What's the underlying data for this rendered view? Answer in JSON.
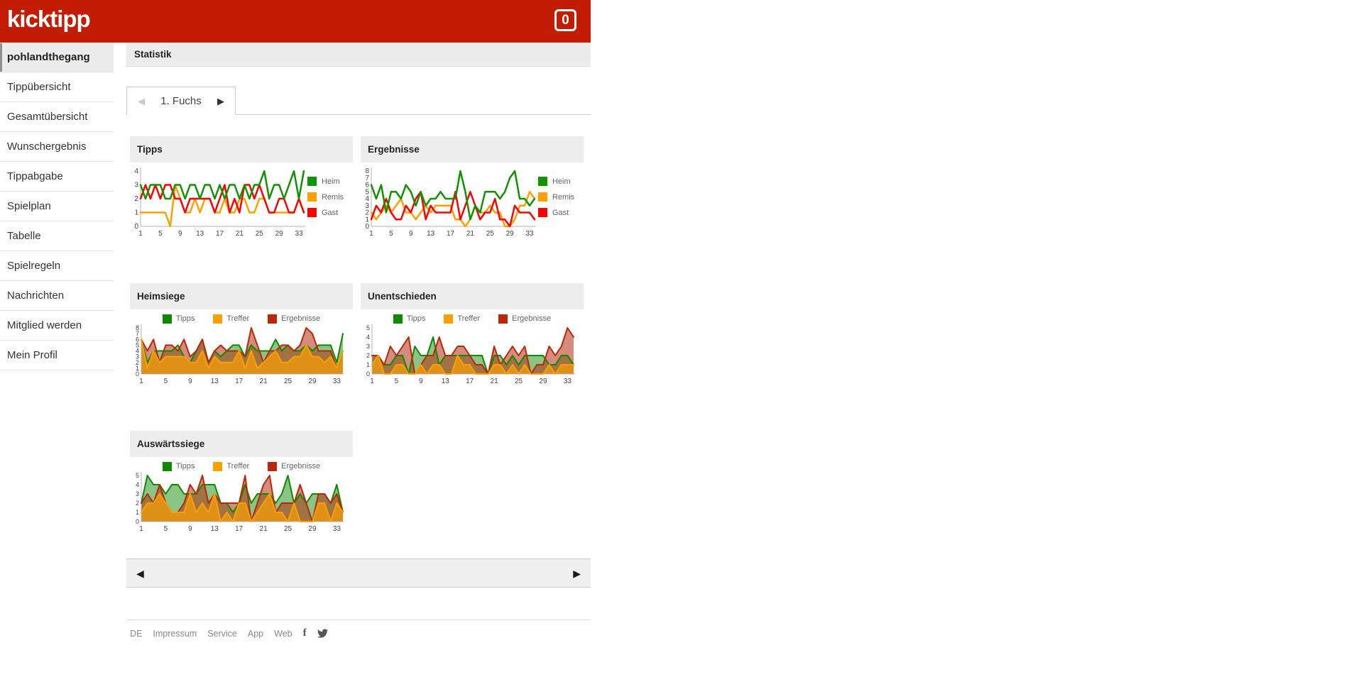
{
  "header": {
    "logo": "kicktipp",
    "badge_count": "0",
    "brand_color": "#c21d04"
  },
  "sidebar": {
    "items": [
      {
        "label": "pohlandthegang",
        "active": true
      },
      {
        "label": "Tippübersicht",
        "active": false
      },
      {
        "label": "Gesamtübersicht",
        "active": false
      },
      {
        "label": "Wunschergebnis",
        "active": false
      },
      {
        "label": "Tippabgabe",
        "active": false
      },
      {
        "label": "Spielplan",
        "active": false
      },
      {
        "label": "Tabelle",
        "active": false
      },
      {
        "label": "Spielregeln",
        "active": false
      },
      {
        "label": "Nachrichten",
        "active": false
      },
      {
        "label": "Mitglied werden",
        "active": false
      },
      {
        "label": "Mein Profil",
        "active": false
      }
    ]
  },
  "statistik_bar": {
    "title": "Statistik"
  },
  "pager_tab": {
    "label": "1. Fuchs",
    "prev_icon": "left-triangle",
    "next_icon": "right-triangle",
    "prev_enabled": false,
    "next_enabled": true
  },
  "bottom_pager": {
    "prev_icon": "left-triangle",
    "next_icon": "right-triangle"
  },
  "footer": {
    "links": [
      "DE",
      "Impressum",
      "Service",
      "App",
      "Web"
    ],
    "social": [
      "facebook",
      "twitter"
    ]
  },
  "chart_data": [
    {
      "type": "line",
      "title": "Tipps",
      "legend_position": "right",
      "x_start": 1,
      "x_end": 34,
      "xticks": [
        1,
        5,
        9,
        13,
        17,
        21,
        25,
        29,
        33
      ],
      "ylim": [
        0,
        4
      ],
      "yticks": [
        0,
        1,
        2,
        3,
        4
      ],
      "grid": false,
      "series": [
        {
          "name": "Heim",
          "color": "#0f9400",
          "values": [
            3,
            2,
            3,
            3,
            3,
            2,
            2,
            3,
            3,
            2,
            3,
            3,
            2,
            3,
            3,
            2,
            3,
            2,
            3,
            3,
            2,
            3,
            2,
            3,
            3,
            4,
            2,
            3,
            3,
            2,
            3,
            4,
            2,
            4
          ]
        },
        {
          "name": "Remis",
          "color": "#ffa000",
          "values": [
            1,
            1,
            1,
            1,
            1,
            1,
            0,
            3,
            2,
            1,
            1,
            2,
            1,
            2,
            2,
            1,
            1,
            2,
            1,
            1,
            2,
            2,
            1,
            1,
            2,
            2,
            1,
            1,
            1,
            1,
            1,
            1,
            2,
            1
          ]
        },
        {
          "name": "Gast",
          "color": "#ff0000",
          "values": [
            2,
            3,
            2,
            3,
            2,
            3,
            3,
            2,
            2,
            1,
            2,
            2,
            2,
            2,
            2,
            1,
            2,
            3,
            1,
            2,
            1,
            3,
            3,
            2,
            3,
            2,
            1,
            1,
            2,
            2,
            1,
            1,
            2,
            1
          ]
        }
      ]
    },
    {
      "type": "line",
      "title": "Ergebnisse",
      "legend_position": "right",
      "x_start": 1,
      "x_end": 34,
      "xticks": [
        1,
        5,
        9,
        13,
        17,
        21,
        25,
        29,
        33
      ],
      "ylim": [
        0,
        8
      ],
      "yticks": [
        0,
        1,
        2,
        3,
        4,
        5,
        6,
        7,
        8
      ],
      "grid": false,
      "series": [
        {
          "name": "Heim",
          "color": "#0f9400",
          "values": [
            6,
            4,
            6,
            2,
            5,
            5,
            4,
            6,
            5,
            3,
            5,
            3,
            4,
            4,
            5,
            4,
            4,
            4,
            8,
            5,
            1,
            3,
            2,
            5,
            5,
            5,
            4,
            5,
            7,
            8,
            4,
            4,
            3,
            4
          ]
        },
        {
          "name": "Remis",
          "color": "#ffa000",
          "values": [
            2,
            1,
            2,
            3,
            2,
            3,
            4,
            2,
            2,
            1,
            2,
            3,
            2,
            3,
            3,
            3,
            3,
            1,
            1,
            0,
            1,
            3,
            2,
            2,
            3,
            2,
            2,
            0,
            0,
            1,
            3,
            3,
            5,
            4
          ]
        },
        {
          "name": "Gast",
          "color": "#ff0000",
          "values": [
            1,
            3,
            2,
            4,
            2,
            1,
            1,
            3,
            2,
            4,
            5,
            1,
            3,
            2,
            2,
            2,
            2,
            5,
            1,
            3,
            5,
            3,
            1,
            2,
            2,
            4,
            1,
            1,
            0,
            3,
            2,
            2,
            2,
            1
          ]
        }
      ]
    },
    {
      "type": "area",
      "title": "Heimsiege",
      "legend_position": "top",
      "x_start": 1,
      "x_end": 34,
      "xticks": [
        1,
        5,
        9,
        13,
        17,
        21,
        25,
        29,
        33
      ],
      "ylim": [
        0,
        8
      ],
      "yticks": [
        0,
        1,
        2,
        3,
        4,
        5,
        6,
        7,
        8
      ],
      "grid": false,
      "series": [
        {
          "name": "Tipps",
          "color": "#0f8a00",
          "fill": "rgba(20,140,10,0.5)",
          "values": [
            6,
            2,
            4,
            4,
            4,
            4,
            5,
            3,
            2,
            4,
            6,
            2,
            4,
            3,
            4,
            5,
            5,
            3,
            5,
            4,
            4,
            4,
            6,
            4,
            5,
            4,
            4,
            5,
            4,
            5,
            5,
            5,
            2,
            7
          ]
        },
        {
          "name": "Treffer",
          "color": "#ffa000",
          "fill": "rgba(255,160,0,0.65)",
          "values": [
            6,
            1,
            4,
            2,
            3,
            3,
            3,
            3,
            2,
            2,
            4,
            1,
            3,
            2,
            2,
            2,
            4,
            1,
            4,
            1,
            2,
            3,
            4,
            2,
            2,
            3,
            3,
            5,
            3,
            3,
            2,
            3,
            1,
            4
          ]
        },
        {
          "name": "Ergebnisse",
          "color": "#bb2709",
          "fill": "rgba(180,45,16,0.55)",
          "values": [
            6,
            4,
            6,
            2,
            5,
            5,
            4,
            6,
            3,
            4,
            6,
            2,
            4,
            5,
            4,
            4,
            4,
            3,
            8,
            5,
            2,
            4,
            4,
            5,
            5,
            4,
            5,
            8,
            7,
            4,
            4,
            4,
            1,
            4
          ]
        }
      ]
    },
    {
      "type": "area",
      "title": "Unentschieden",
      "legend_position": "top",
      "x_start": 1,
      "x_end": 34,
      "xticks": [
        1,
        5,
        9,
        13,
        17,
        21,
        25,
        29,
        33
      ],
      "ylim": [
        0,
        5
      ],
      "yticks": [
        0,
        1,
        2,
        3,
        4,
        5
      ],
      "grid": false,
      "series": [
        {
          "name": "Tipps",
          "color": "#0f8a00",
          "fill": "rgba(20,140,10,0.5)",
          "values": [
            2,
            2,
            1,
            1,
            2,
            2,
            0,
            3,
            2,
            2,
            4,
            1,
            2,
            2,
            2,
            2,
            2,
            2,
            2,
            0,
            2,
            2,
            1,
            2,
            1,
            2,
            2,
            2,
            2,
            1,
            1,
            2,
            2,
            1
          ]
        },
        {
          "name": "Treffer",
          "color": "#ffa000",
          "fill": "rgba(255,160,0,0.65)",
          "values": [
            1,
            2,
            0,
            0,
            1,
            1,
            0,
            0,
            1,
            0,
            1,
            1,
            0,
            0,
            2,
            1,
            1,
            0,
            0,
            0,
            1,
            1,
            0,
            1,
            0,
            1,
            0,
            0,
            0,
            1,
            0,
            1,
            1,
            1
          ]
        },
        {
          "name": "Ergebnisse",
          "color": "#bb2709",
          "fill": "rgba(180,45,16,0.55)",
          "values": [
            2,
            2,
            1,
            3,
            2,
            3,
            4,
            0,
            1,
            2,
            2,
            4,
            2,
            2,
            3,
            3,
            2,
            1,
            1,
            0,
            3,
            1,
            2,
            3,
            2,
            3,
            0,
            1,
            1,
            3,
            2,
            3,
            5,
            4
          ]
        }
      ]
    },
    {
      "type": "area",
      "title": "Auswärtssiege",
      "legend_position": "top",
      "x_start": 1,
      "x_end": 34,
      "xticks": [
        1,
        5,
        9,
        13,
        17,
        21,
        25,
        29,
        33
      ],
      "ylim": [
        0,
        5
      ],
      "yticks": [
        0,
        1,
        2,
        3,
        4,
        5
      ],
      "grid": false,
      "series": [
        {
          "name": "Tipps",
          "color": "#0f8a00",
          "fill": "rgba(20,140,10,0.5)",
          "values": [
            2,
            5,
            4,
            4,
            3,
            4,
            4,
            3,
            3,
            3,
            4,
            4,
            4,
            2,
            2,
            1,
            2,
            4,
            2,
            3,
            3,
            3,
            2,
            3,
            5,
            2,
            3,
            2,
            3,
            3,
            3,
            2,
            4,
            1
          ]
        },
        {
          "name": "Treffer",
          "color": "#ffa000",
          "fill": "rgba(255,160,0,0.65)",
          "values": [
            1,
            2,
            2,
            3,
            2,
            1,
            1,
            1,
            3,
            1,
            2,
            1,
            3,
            0,
            1,
            0,
            2,
            2,
            0,
            1,
            2,
            3,
            1,
            1,
            0,
            2,
            0,
            0,
            0,
            2,
            2,
            0,
            2,
            1
          ]
        },
        {
          "name": "Ergebnisse",
          "color": "#bb2709",
          "fill": "rgba(180,45,16,0.55)",
          "values": [
            2,
            3,
            2,
            4,
            2,
            1,
            1,
            2,
            4,
            3,
            5,
            2,
            3,
            2,
            2,
            2,
            2,
            5,
            0,
            2,
            4,
            5,
            1,
            2,
            2,
            2,
            4,
            2,
            0,
            3,
            3,
            2,
            3,
            1
          ]
        }
      ]
    }
  ]
}
